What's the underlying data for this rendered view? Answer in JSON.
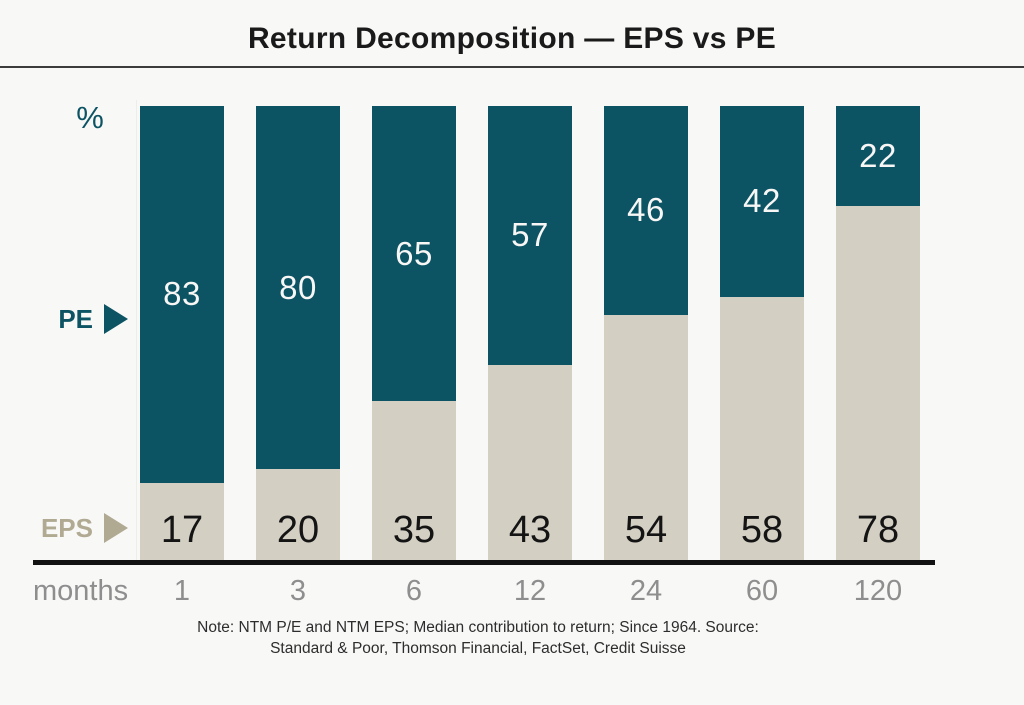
{
  "header": {
    "title": "Return Decomposition — EPS vs PE"
  },
  "axis": {
    "y_unit": "%",
    "x_axis_label": "months"
  },
  "legend": {
    "pe": "PE",
    "eps": "EPS"
  },
  "colors": {
    "pe_bar": "#0c5464",
    "eps_bar": "#d3cfc3",
    "pe_label_text": "#0c5464",
    "eps_label_text": "#b1aa92",
    "value_text_on_pe": "#f8f7f5",
    "value_text_on_eps": "#141414",
    "axis_text": "#8e8e8e",
    "title_text": "#1a1a1a",
    "baseline": "#121212",
    "background": "#f8f8f7"
  },
  "note": {
    "line1": "Note: NTM P/E and NTM EPS; Median contribution to return; Since 1964. Source:",
    "line2": "Standard & Poor, Thomson Financial, FactSet, Credit Suisse"
  },
  "chart_data": {
    "type": "bar",
    "stacked": true,
    "categories": [
      "1",
      "3",
      "6",
      "12",
      "24",
      "60",
      "120"
    ],
    "series": [
      {
        "name": "PE",
        "values": [
          83,
          80,
          65,
          57,
          46,
          42,
          22
        ],
        "color": "#0c5464",
        "label_color": "#f8f7f5"
      },
      {
        "name": "EPS",
        "values": [
          17,
          20,
          35,
          43,
          54,
          58,
          78
        ],
        "color": "#d3cfc3",
        "label_color": "#141414"
      }
    ],
    "title": "Return Decomposition — EPS vs PE",
    "xlabel": "months",
    "ylabel": "%",
    "ylim": [
      0,
      100
    ],
    "legend_position": "left",
    "grid": false,
    "value_labels": "shown-on-segments"
  }
}
